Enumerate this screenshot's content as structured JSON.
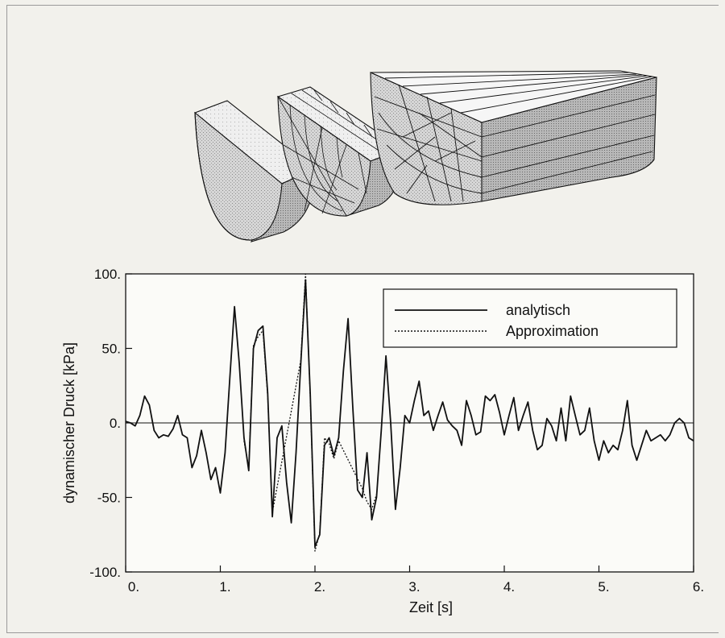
{
  "chart_data": {
    "type": "line",
    "xlabel": "Zeit [s]",
    "ylabel": "dynamischer Druck [kPa]",
    "xlim": [
      0,
      6
    ],
    "ylim": [
      -100,
      100
    ],
    "xticks": [
      "0.",
      "1.",
      "2.",
      "3.",
      "4.",
      "5.",
      "6."
    ],
    "yticks": [
      "-100.",
      "-50.",
      "0.",
      "50.",
      "100."
    ],
    "legend_position": "top-right",
    "zero_line": true,
    "series": [
      {
        "name": "analytisch",
        "style": "solid",
        "x": [
          0,
          0.05,
          0.1,
          0.15,
          0.2,
          0.25,
          0.3,
          0.35,
          0.4,
          0.45,
          0.5,
          0.55,
          0.6,
          0.65,
          0.7,
          0.75,
          0.8,
          0.85,
          0.9,
          0.95,
          1.0,
          1.05,
          1.1,
          1.15,
          1.2,
          1.25,
          1.3,
          1.35,
          1.4,
          1.45,
          1.5,
          1.55,
          1.6,
          1.65,
          1.7,
          1.75,
          1.8,
          1.85,
          1.9,
          1.95,
          2.0,
          2.05,
          2.1,
          2.15,
          2.2,
          2.25,
          2.3,
          2.35,
          2.4,
          2.45,
          2.5,
          2.55,
          2.6,
          2.65,
          2.7,
          2.75,
          2.8,
          2.85,
          2.9,
          2.95,
          3.0,
          3.05,
          3.1,
          3.15,
          3.2,
          3.25,
          3.3,
          3.35,
          3.4,
          3.45,
          3.5,
          3.55,
          3.6,
          3.65,
          3.7,
          3.75,
          3.8,
          3.85,
          3.9,
          3.95,
          4.0,
          4.05,
          4.1,
          4.15,
          4.2,
          4.25,
          4.3,
          4.35,
          4.4,
          4.45,
          4.5,
          4.55,
          4.6,
          4.65,
          4.7,
          4.75,
          4.8,
          4.85,
          4.9,
          4.95,
          5.0,
          5.05,
          5.1,
          5.15,
          5.2,
          5.25,
          5.3,
          5.35,
          5.4,
          5.45,
          5.5,
          5.55,
          5.6,
          5.65,
          5.7,
          5.75,
          5.8,
          5.85,
          5.9,
          5.95,
          6.0
        ],
        "y": [
          1,
          0,
          -2,
          5,
          18,
          12,
          -5,
          -10,
          -8,
          -9,
          -4,
          5,
          -8,
          -10,
          -30,
          -22,
          -5,
          -20,
          -38,
          -30,
          -47,
          -20,
          30,
          78,
          40,
          -10,
          -32,
          50,
          62,
          65,
          20,
          -63,
          -10,
          -2,
          -40,
          -67,
          -20,
          40,
          96,
          20,
          -83,
          -75,
          -15,
          -10,
          -22,
          -10,
          35,
          70,
          10,
          -45,
          -50,
          -20,
          -65,
          -50,
          -5,
          45,
          0,
          -58,
          -30,
          5,
          0,
          15,
          28,
          5,
          8,
          -5,
          5,
          14,
          2,
          -2,
          -5,
          -15,
          15,
          5,
          -8,
          -6,
          18,
          15,
          19,
          7,
          -8,
          5,
          17,
          -5,
          5,
          14,
          -5,
          -18,
          -15,
          3,
          -2,
          -12,
          10,
          -12,
          18,
          5,
          -8,
          -5,
          10,
          -12,
          -25,
          -12,
          -20,
          -15,
          -18,
          -5,
          15,
          -15,
          -25,
          -15,
          -5,
          -12,
          -10,
          -8,
          -12,
          -8,
          0,
          3,
          0,
          -10,
          -12
        ]
      },
      {
        "name": "Approximation",
        "style": "dotted",
        "x": [
          1.25,
          1.3,
          1.35,
          1.4,
          1.45,
          1.5,
          1.55,
          1.85,
          1.9,
          1.95,
          2.0,
          2.05,
          2.1,
          2.15,
          2.2,
          2.25,
          2.5,
          2.55,
          2.6,
          2.65
        ],
        "y": [
          -12,
          -30,
          52,
          58,
          62,
          18,
          -60,
          42,
          100,
          18,
          -86,
          -74,
          -10,
          -14,
          -24,
          -12,
          -44,
          -53,
          -58,
          -48
        ]
      }
    ]
  },
  "illustration": {
    "name": "fe-mesh-half-cylinder-3d-views"
  }
}
